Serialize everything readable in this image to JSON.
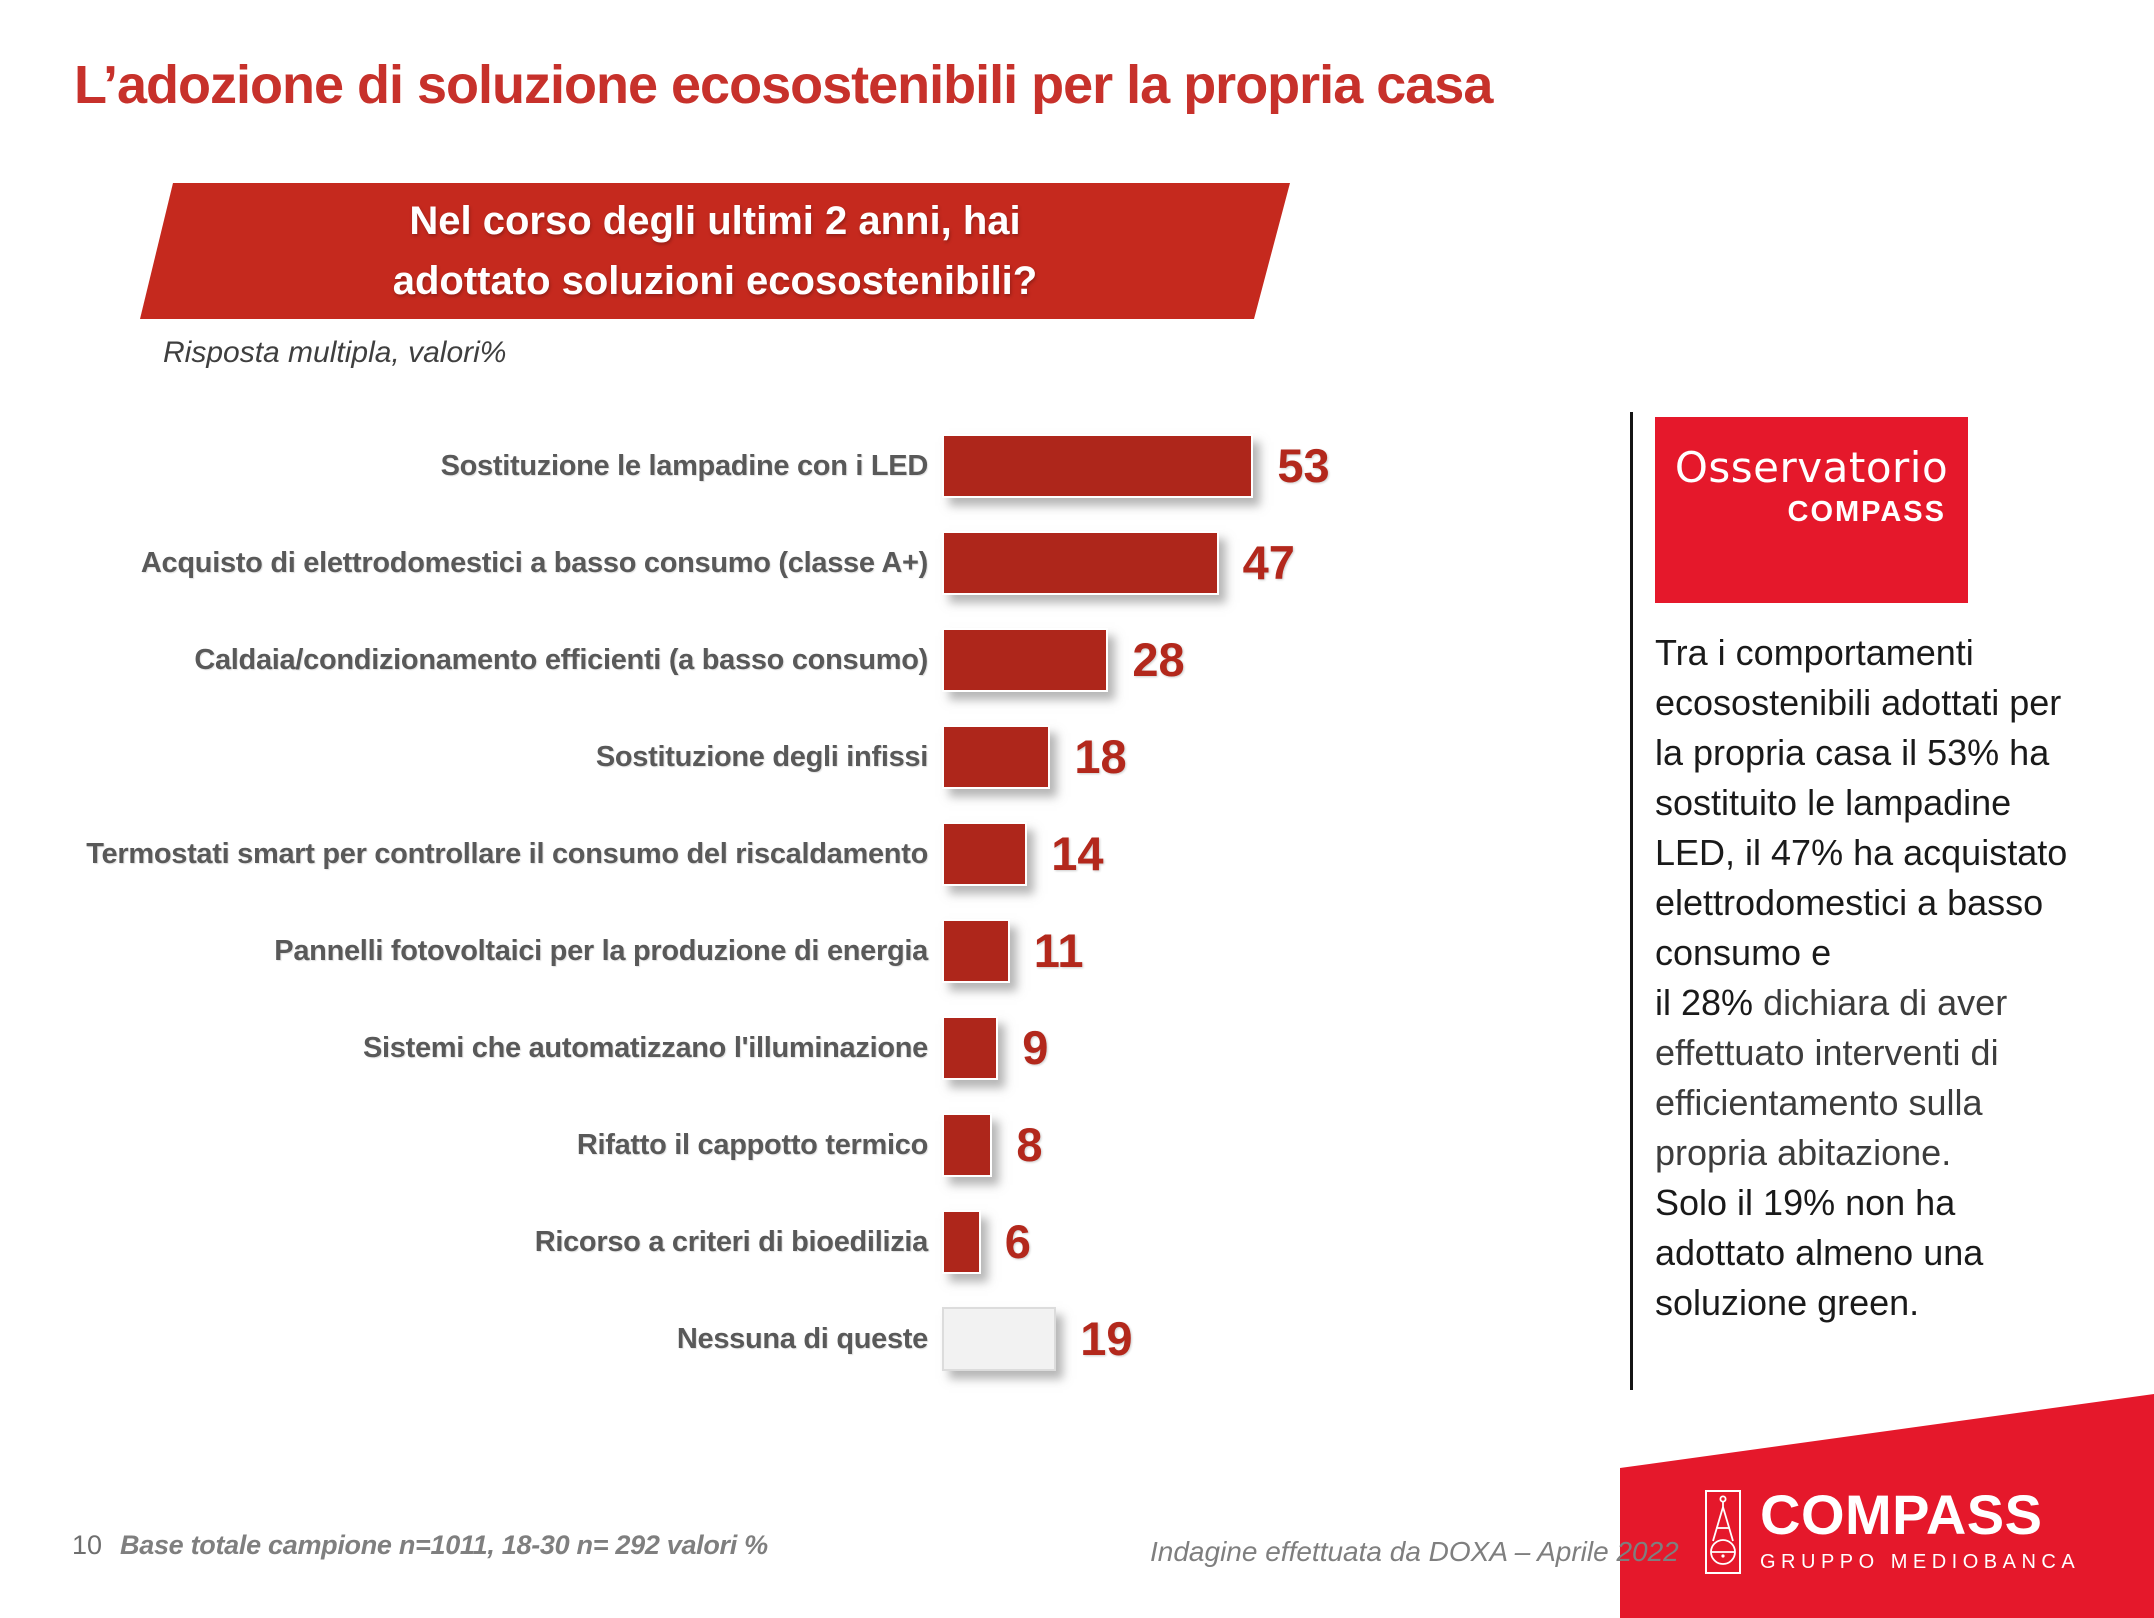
{
  "slide": {
    "page_number": "10",
    "title": "L’adozione di soluzione ecosostenibili per la propria casa",
    "question_banner": {
      "line1": "Nel corso degli ultimi 2 anni, hai",
      "line2": "adottato soluzioni ecosostenibili?",
      "bg_color": "#C5291E"
    },
    "subtitle": "Risposta multipla, valori%",
    "footer_base_note": "Base totale campione n=1011, 18-30 n= 292 valori %",
    "footer_survey_note": "Indagine effettuata da DOXA – Aprile 2022"
  },
  "chart_data": {
    "type": "bar",
    "orientation": "horizontal",
    "unit": "%",
    "title": "Nel corso degli ultimi 2 anni, hai adottato soluzioni ecosostenibili?",
    "subtitle": "Risposta multipla, valori%",
    "value_axis_visible": false,
    "grid": false,
    "data_labels": true,
    "xlim": [
      0,
      60
    ],
    "categories": [
      "Sostituzione le lampadine con i LED",
      "Acquisto di elettrodomestici a basso consumo (classe A+)",
      "Caldaia/condizionamento efficienti (a basso consumo)",
      "Sostituzione degli infissi",
      "Termostati smart per controllare il consumo del riscaldamento",
      "Pannelli fotovoltaici per la produzione di energia",
      "Sistemi che automatizzano l'illuminazione",
      "Rifatto il cappotto termico",
      "Ricorso a criteri di bioedilizia",
      "Nessuna di queste"
    ],
    "values": [
      53,
      47,
      28,
      18,
      14,
      11,
      9,
      8,
      6,
      19
    ],
    "bar_color": "#AE261B",
    "none_bar_color": "#F2F2F2",
    "value_label_color": "#B3281C",
    "rows": [
      {
        "label": "Sostituzione le lampadine con i LED",
        "value": 53,
        "color": "#AE261B",
        "border_color": "#FFFFFF"
      },
      {
        "label": "Acquisto di elettrodomestici a basso consumo (classe A+)",
        "value": 47,
        "color": "#AE261B",
        "border_color": "#FFFFFF"
      },
      {
        "label": "Caldaia/condizionamento efficienti (a basso consumo)",
        "value": 28,
        "color": "#AE261B",
        "border_color": "#FFFFFF"
      },
      {
        "label": "Sostituzione degli infissi",
        "value": 18,
        "color": "#AE261B",
        "border_color": "#FFFFFF"
      },
      {
        "label": "Termostati smart per controllare il consumo del riscaldamento",
        "value": 14,
        "color": "#AE261B",
        "border_color": "#FFFFFF"
      },
      {
        "label": "Pannelli fotovoltaici per la produzione di energia",
        "value": 11,
        "color": "#AE261B",
        "border_color": "#FFFFFF"
      },
      {
        "label": "Sistemi che automatizzano l'illuminazione",
        "value": 9,
        "color": "#AE261B",
        "border_color": "#FFFFFF"
      },
      {
        "label": "Rifatto il cappotto termico",
        "value": 8,
        "color": "#AE261B",
        "border_color": "#FFFFFF"
      },
      {
        "label": "Ricorso a criteri di bioedilizia",
        "value": 6,
        "color": "#AE261B",
        "border_color": "#FFFFFF"
      },
      {
        "label": "Nessuna di queste",
        "value": 19,
        "color": "#F2F2F2",
        "border_color": "#DCDCDC"
      }
    ]
  },
  "right_panel": {
    "logo": {
      "line1": "Osservatorio",
      "line2": "COMPASS",
      "bg_color": "#E5182B"
    },
    "commentary_segments": [
      {
        "text": "Tra i comportamenti ecosostenibili adottati per la propria casa il 53% ha sostituito le lampadine LED, il 47% ha acquistato elettrodomestici a basso consumo e\nil 28% ",
        "color": "#1a1a1a"
      },
      {
        "text": "dichiara di aver effettuato interventi di efficientamento sulla propria abitazione.\n",
        "color": "#3d3d3d"
      },
      {
        "text": "Solo il 19% non ha adottato almeno una soluzione green.",
        "color": "#1a1a1a"
      }
    ]
  },
  "brand_footer": {
    "name": "COMPASS",
    "subname": "GRUPPO MEDIOBANCA",
    "bg_color": "#E5182B"
  }
}
